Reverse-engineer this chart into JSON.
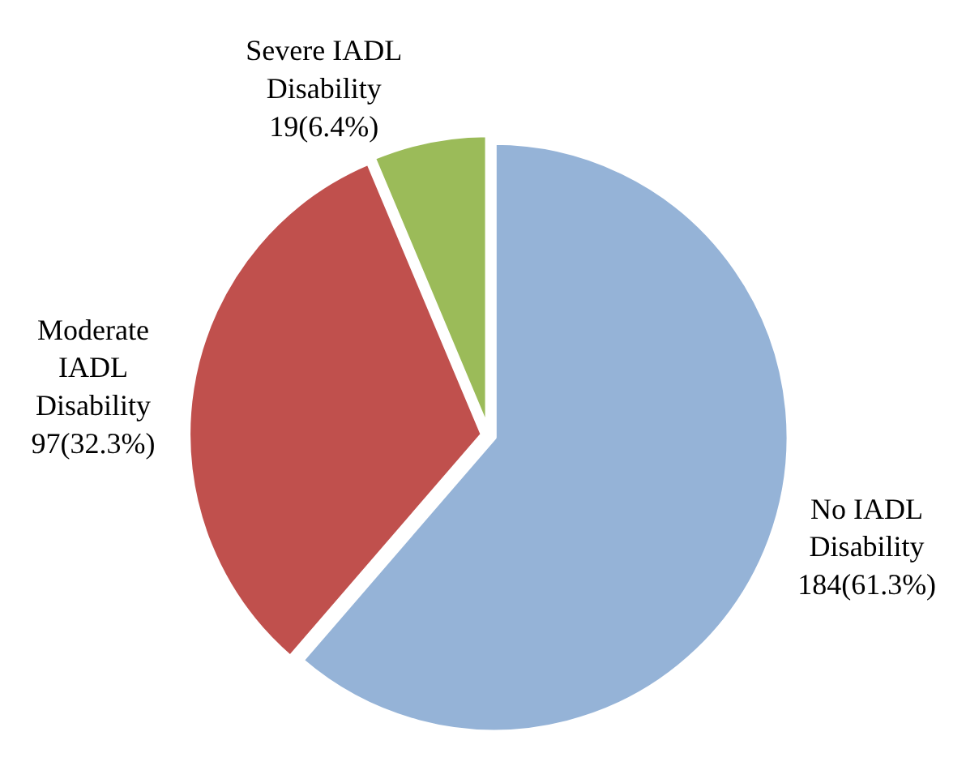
{
  "chart_data": {
    "type": "pie",
    "categories": [
      "No IADL Disability",
      "Moderate IADL Disability",
      "Severe IADL Disability"
    ],
    "values": [
      184,
      97,
      19
    ],
    "value_labels": [
      "184(61.3%)",
      "97(32.3%)",
      "19(6.4%)"
    ],
    "colors": [
      "#95b3d7",
      "#c0504d",
      "#9bbb59"
    ],
    "legend": false
  }
}
